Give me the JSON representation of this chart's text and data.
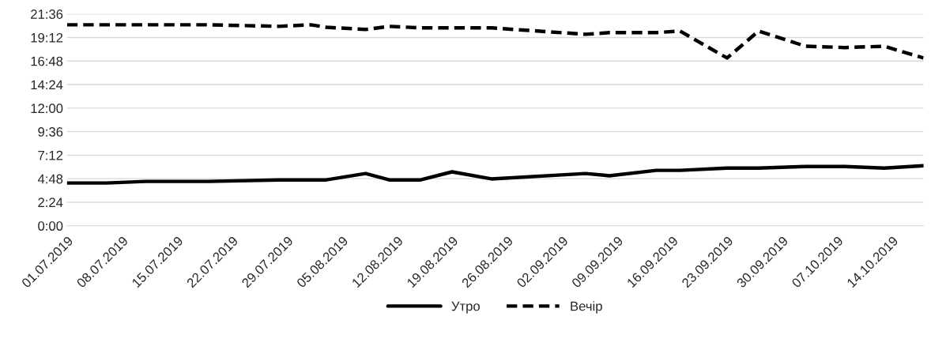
{
  "chart_data": {
    "type": "line",
    "x": [
      "2019-07-01",
      "2019-07-06",
      "2019-07-11",
      "2019-07-19",
      "2019-07-28",
      "2019-08-01",
      "2019-08-03",
      "2019-08-08",
      "2019-08-11",
      "2019-08-15",
      "2019-08-19",
      "2019-08-24",
      "2019-09-05",
      "2019-09-08",
      "2019-09-14",
      "2019-09-17",
      "2019-09-23",
      "2019-09-27",
      "2019-10-03",
      "2019-10-08",
      "2019-10-13",
      "2019-10-18"
    ],
    "series": [
      {
        "name": "Утро",
        "color": "#000000",
        "line_style": "solid",
        "values": [
          4.36,
          4.36,
          4.52,
          4.52,
          4.68,
          4.68,
          4.68,
          5.33,
          4.68,
          4.68,
          5.5,
          4.78,
          5.33,
          5.1,
          5.65,
          5.65,
          5.88,
          5.88,
          6.04,
          6.04,
          5.88,
          6.13
        ]
      },
      {
        "name": "Вечір",
        "color": "#000000",
        "line_style": "dashed",
        "values": [
          20.5,
          20.5,
          20.5,
          20.5,
          20.34,
          20.5,
          20.25,
          20.02,
          20.34,
          20.18,
          20.18,
          20.18,
          19.53,
          19.7,
          19.7,
          19.86,
          17.11,
          19.86,
          18.31,
          18.18,
          18.31,
          17.11
        ]
      }
    ],
    "xlim": [
      "2019-07-01",
      "2019-10-18"
    ],
    "xticks": [
      {
        "value": "2019-07-01",
        "label": "01.07.2019"
      },
      {
        "value": "2019-07-08",
        "label": "08.07.2019"
      },
      {
        "value": "2019-07-15",
        "label": "15.07.2019"
      },
      {
        "value": "2019-07-22",
        "label": "22.07.2019"
      },
      {
        "value": "2019-07-29",
        "label": "29.07.2019"
      },
      {
        "value": "2019-08-05",
        "label": "05.08.2019"
      },
      {
        "value": "2019-08-12",
        "label": "12.08.2019"
      },
      {
        "value": "2019-08-19",
        "label": "19.08.2019"
      },
      {
        "value": "2019-08-26",
        "label": "26.08.2019"
      },
      {
        "value": "2019-09-02",
        "label": "02.09.2019"
      },
      {
        "value": "2019-09-09",
        "label": "09.09.2019"
      },
      {
        "value": "2019-09-16",
        "label": "16.09.2019"
      },
      {
        "value": "2019-09-23",
        "label": "23.09.2019"
      },
      {
        "value": "2019-09-30",
        "label": "30.09.2019"
      },
      {
        "value": "2019-10-07",
        "label": "07.10.2019"
      },
      {
        "value": "2019-10-14",
        "label": "14.10.2019"
      }
    ],
    "ylim": [
      0,
      21.6
    ],
    "yticks": [
      {
        "value": 0,
        "label": "0:00"
      },
      {
        "value": 2.4,
        "label": "2:24"
      },
      {
        "value": 4.8,
        "label": "4:48"
      },
      {
        "value": 7.2,
        "label": "7:12"
      },
      {
        "value": 9.6,
        "label": "9:36"
      },
      {
        "value": 12,
        "label": "12:00"
      },
      {
        "value": 14.4,
        "label": "14:24"
      },
      {
        "value": 16.8,
        "label": "16:48"
      },
      {
        "value": 19.2,
        "label": "19:12"
      },
      {
        "value": 21.6,
        "label": "21:36"
      }
    ],
    "grid": "y",
    "legend": "bottom"
  }
}
